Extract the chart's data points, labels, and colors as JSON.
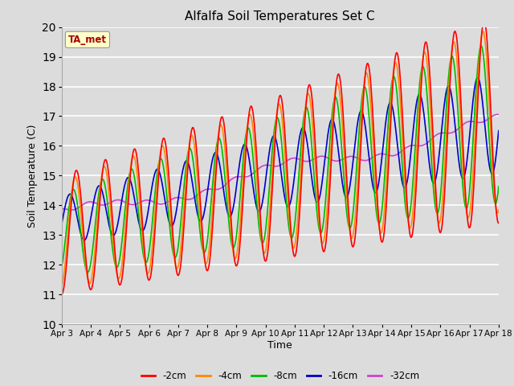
{
  "title": "Alfalfa Soil Temperatures Set C",
  "xlabel": "Time",
  "ylabel": "Soil Temperature (C)",
  "ylim": [
    10.0,
    20.0
  ],
  "yticks": [
    10.0,
    11.0,
    12.0,
    13.0,
    14.0,
    15.0,
    16.0,
    17.0,
    18.0,
    19.0,
    20.0
  ],
  "xtick_labels": [
    "Apr 3",
    "Apr 4",
    "Apr 5",
    "Apr 6",
    "Apr 7",
    "Apr 8",
    "Apr 9",
    "Apr 10",
    "Apr 11",
    "Apr 12",
    "Apr 13",
    "Apr 14",
    "Apr 15",
    "Apr 16",
    "Apr 17",
    "Apr 18"
  ],
  "background_color": "#dcdcdc",
  "plot_bg_color": "#dcdcdc",
  "grid_color": "#ffffff",
  "colors": {
    "-2cm": "#ff0000",
    "-4cm": "#ff8800",
    "-8cm": "#00bb00",
    "-16cm": "#0000cc",
    "-32cm": "#cc44cc"
  },
  "legend_label": "TA_met",
  "legend_box_color": "#ffffcc",
  "legend_text_color": "#aa0000"
}
